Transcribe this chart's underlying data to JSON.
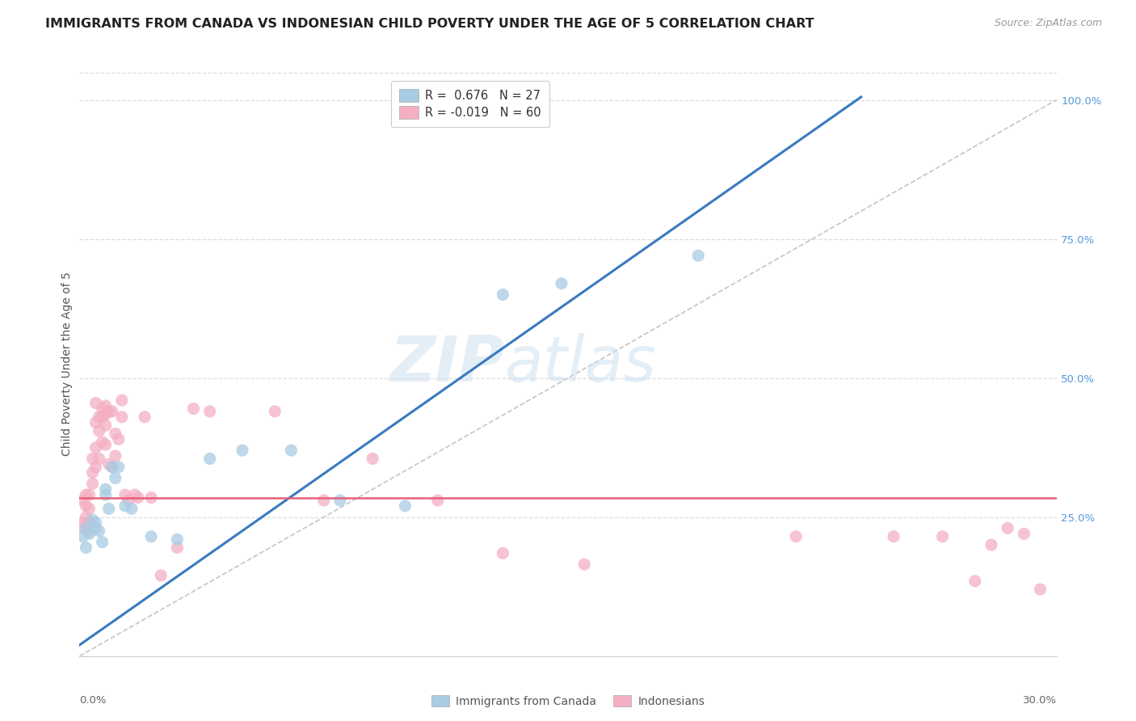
{
  "title": "IMMIGRANTS FROM CANADA VS INDONESIAN CHILD POVERTY UNDER THE AGE OF 5 CORRELATION CHART",
  "source": "Source: ZipAtlas.com",
  "ylabel": "Child Poverty Under the Age of 5",
  "legend_label1": "Immigrants from Canada",
  "legend_label2": "Indonesians",
  "R1": 0.676,
  "N1": 27,
  "R2": -0.019,
  "N2": 60,
  "blue_color": "#a8cce4",
  "pink_color": "#f4afc3",
  "blue_line_color": "#3a7abf",
  "pink_line_color": "#e8607a",
  "diag_color": "#bbbbbb",
  "grid_color": "#dddddd",
  "y_tick_vals": [
    0.25,
    0.5,
    0.75,
    1.0
  ],
  "y_tick_labels": [
    "25.0%",
    "50.0%",
    "75.0%",
    "100.0%"
  ],
  "x_min": 0.0,
  "x_max": 0.3,
  "y_min": 0.0,
  "y_max": 1.05,
  "blue_line_x0": 0.0,
  "blue_line_y0": 0.02,
  "blue_line_x1": 0.19,
  "blue_line_y1": 0.8,
  "pink_line_y": 0.285,
  "blue_scatter_x": [
    0.001,
    0.002,
    0.002,
    0.003,
    0.004,
    0.005,
    0.005,
    0.006,
    0.007,
    0.008,
    0.008,
    0.009,
    0.01,
    0.011,
    0.012,
    0.014,
    0.016,
    0.022,
    0.03,
    0.04,
    0.05,
    0.065,
    0.08,
    0.1,
    0.13,
    0.148,
    0.19
  ],
  "blue_scatter_y": [
    0.215,
    0.195,
    0.23,
    0.22,
    0.245,
    0.23,
    0.24,
    0.225,
    0.205,
    0.29,
    0.3,
    0.265,
    0.34,
    0.32,
    0.34,
    0.27,
    0.265,
    0.215,
    0.21,
    0.355,
    0.37,
    0.37,
    0.28,
    0.27,
    0.65,
    0.67,
    0.72
  ],
  "pink_scatter_x": [
    0.001,
    0.001,
    0.001,
    0.002,
    0.002,
    0.002,
    0.003,
    0.003,
    0.003,
    0.003,
    0.004,
    0.004,
    0.004,
    0.005,
    0.005,
    0.005,
    0.005,
    0.006,
    0.006,
    0.006,
    0.007,
    0.007,
    0.007,
    0.008,
    0.008,
    0.008,
    0.008,
    0.009,
    0.009,
    0.01,
    0.01,
    0.011,
    0.011,
    0.012,
    0.013,
    0.013,
    0.014,
    0.015,
    0.017,
    0.018,
    0.02,
    0.022,
    0.025,
    0.03,
    0.035,
    0.04,
    0.06,
    0.075,
    0.09,
    0.11,
    0.13,
    0.155,
    0.22,
    0.25,
    0.265,
    0.275,
    0.28,
    0.285,
    0.29,
    0.295
  ],
  "pink_scatter_y": [
    0.23,
    0.24,
    0.28,
    0.25,
    0.27,
    0.29,
    0.225,
    0.24,
    0.265,
    0.29,
    0.31,
    0.33,
    0.355,
    0.34,
    0.375,
    0.42,
    0.455,
    0.355,
    0.405,
    0.43,
    0.385,
    0.43,
    0.445,
    0.38,
    0.415,
    0.435,
    0.45,
    0.345,
    0.44,
    0.34,
    0.44,
    0.36,
    0.4,
    0.39,
    0.43,
    0.46,
    0.29,
    0.28,
    0.29,
    0.285,
    0.43,
    0.285,
    0.145,
    0.195,
    0.445,
    0.44,
    0.44,
    0.28,
    0.355,
    0.28,
    0.185,
    0.165,
    0.215,
    0.215,
    0.215,
    0.135,
    0.2,
    0.23,
    0.22,
    0.12
  ]
}
